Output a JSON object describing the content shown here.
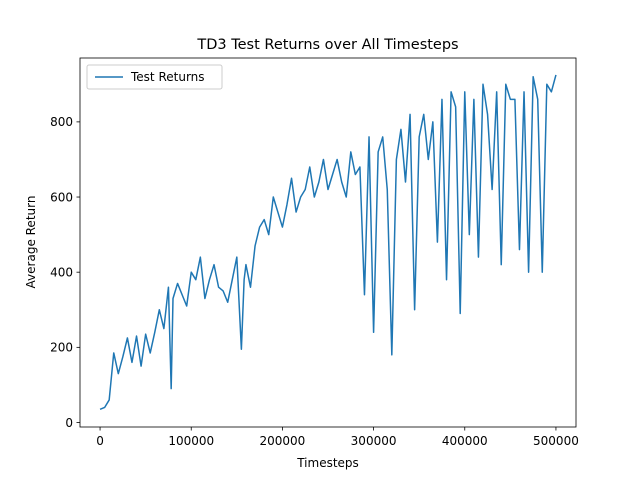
{
  "chart_data": {
    "type": "line",
    "title": "TD3 Test Returns over All Timesteps",
    "xlabel": "Timesteps",
    "ylabel": "Average Return",
    "xlim": [
      -22000,
      522000
    ],
    "ylim": [
      -12,
      970
    ],
    "xticks": [
      0,
      100000,
      200000,
      300000,
      400000,
      500000
    ],
    "xtick_labels": [
      "0",
      "100000",
      "200000",
      "300000",
      "400000",
      "500000"
    ],
    "yticks": [
      0,
      200,
      400,
      600,
      800
    ],
    "ytick_labels": [
      "0",
      "200",
      "400",
      "600",
      "800"
    ],
    "grid": false,
    "legend": {
      "placement": "top-left",
      "entries": [
        "Test Returns"
      ]
    },
    "colors": {
      "series": "#1f77b4"
    },
    "series": [
      {
        "name": "Test Returns",
        "x": [
          0,
          5000,
          10000,
          15000,
          20000,
          25000,
          30000,
          35000,
          40000,
          45000,
          50000,
          55000,
          60000,
          65000,
          70000,
          75000,
          78000,
          80000,
          85000,
          90000,
          95000,
          100000,
          105000,
          110000,
          115000,
          120000,
          125000,
          130000,
          135000,
          140000,
          145000,
          150000,
          155000,
          158000,
          160000,
          165000,
          170000,
          175000,
          180000,
          185000,
          190000,
          195000,
          200000,
          205000,
          210000,
          215000,
          220000,
          225000,
          230000,
          235000,
          240000,
          245000,
          250000,
          255000,
          260000,
          265000,
          270000,
          275000,
          280000,
          285000,
          290000,
          295000,
          300000,
          305000,
          310000,
          315000,
          320000,
          325000,
          330000,
          335000,
          340000,
          345000,
          350000,
          355000,
          360000,
          365000,
          370000,
          375000,
          380000,
          385000,
          390000,
          395000,
          400000,
          405000,
          410000,
          415000,
          420000,
          425000,
          430000,
          435000,
          440000,
          445000,
          450000,
          455000,
          460000,
          465000,
          470000,
          475000,
          480000,
          485000,
          490000,
          495000,
          500000
        ],
        "values": [
          35,
          40,
          60,
          185,
          130,
          175,
          225,
          160,
          230,
          150,
          235,
          185,
          240,
          300,
          250,
          360,
          90,
          330,
          370,
          340,
          310,
          400,
          380,
          440,
          330,
          380,
          420,
          360,
          350,
          320,
          380,
          440,
          195,
          380,
          420,
          360,
          470,
          520,
          540,
          500,
          600,
          560,
          520,
          580,
          650,
          560,
          600,
          620,
          680,
          600,
          640,
          700,
          620,
          660,
          700,
          640,
          600,
          720,
          660,
          680,
          340,
          760,
          240,
          720,
          760,
          620,
          180,
          700,
          780,
          640,
          820,
          300,
          760,
          820,
          700,
          800,
          480,
          860,
          380,
          880,
          840,
          290,
          880,
          500,
          860,
          440,
          900,
          820,
          620,
          880,
          420,
          900,
          860,
          860,
          460,
          880,
          400,
          920,
          860,
          400,
          900,
          880,
          925
        ]
      }
    ]
  }
}
